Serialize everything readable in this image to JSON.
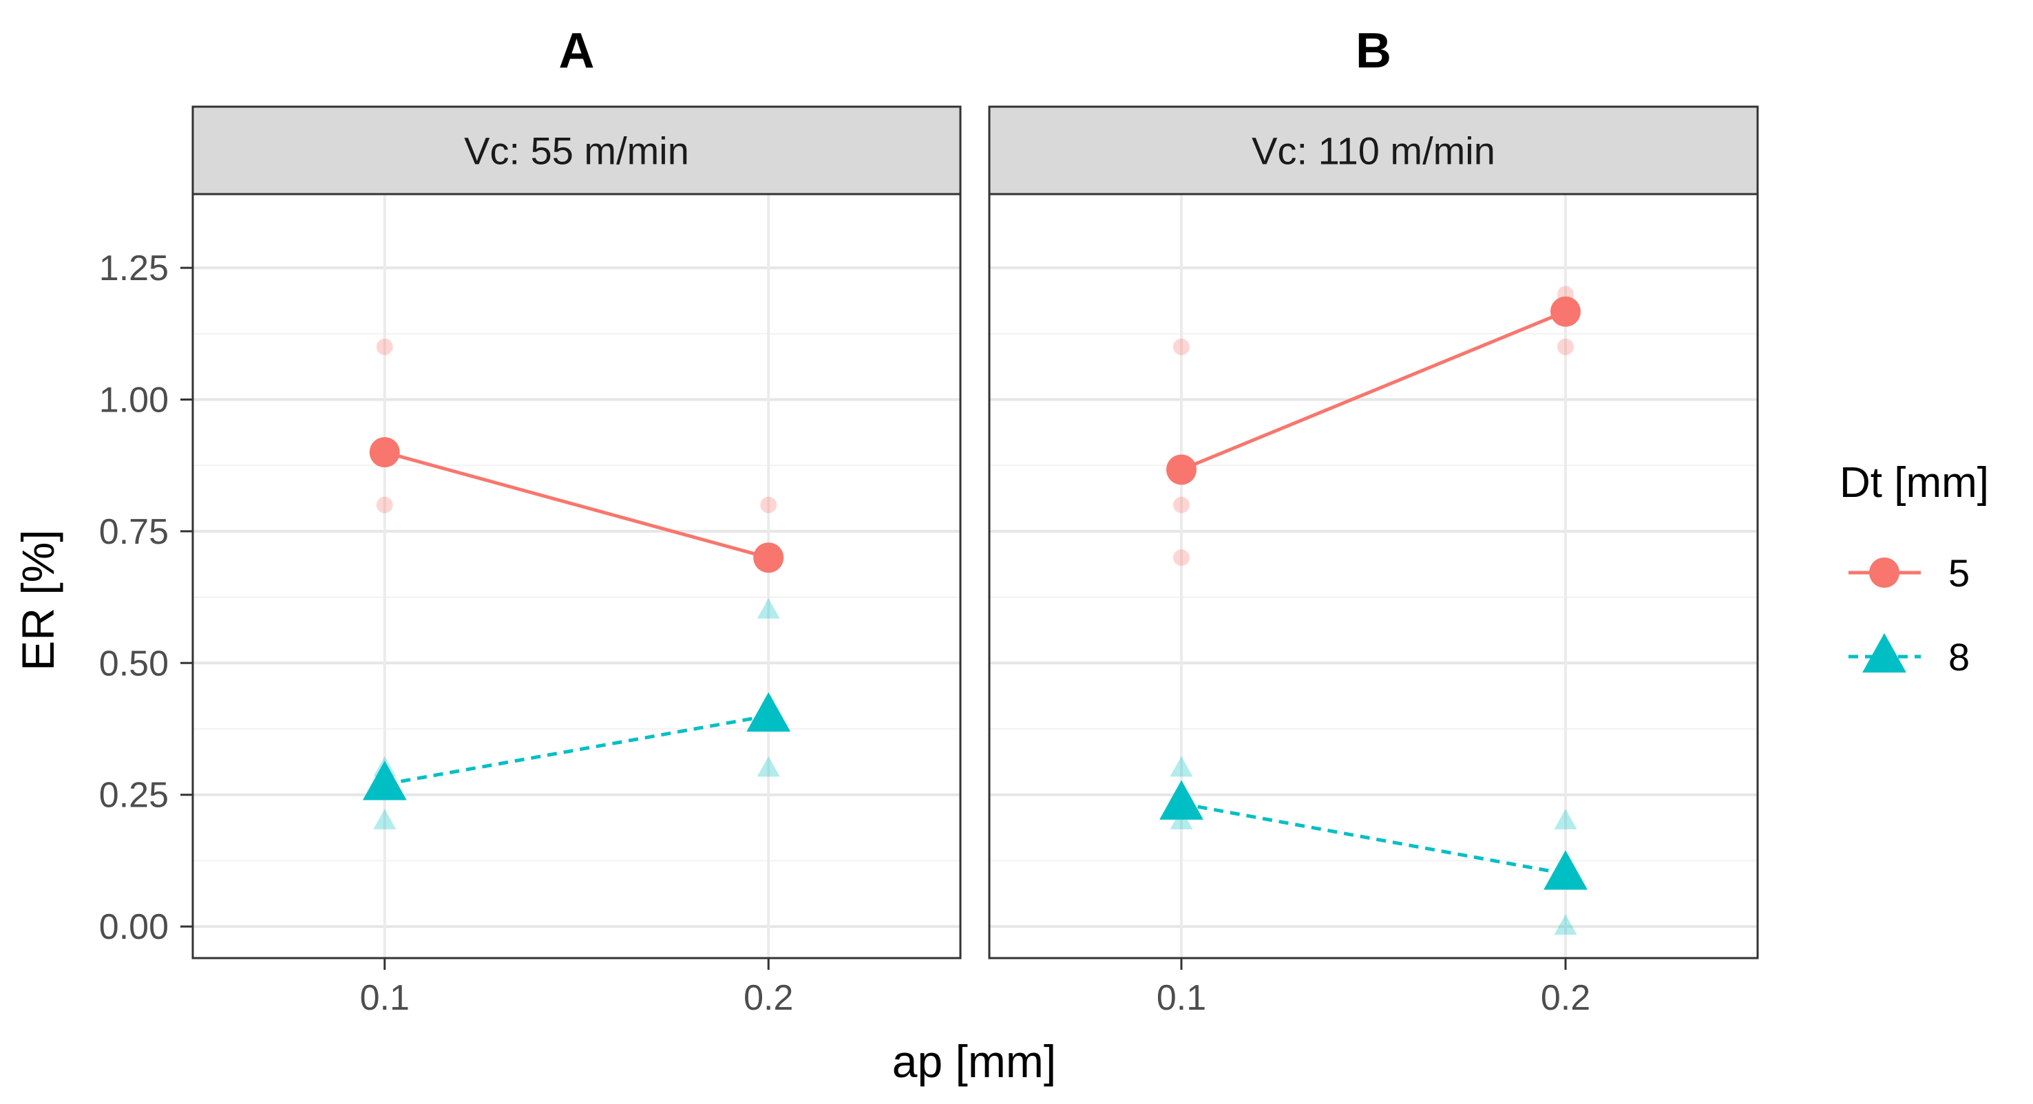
{
  "chart_data": {
    "type": "line",
    "xlabel": "ap [mm]",
    "ylabel": "ER [%]",
    "x_ticks": [
      "0.1",
      "0.2"
    ],
    "x_range": [
      0.05,
      0.25
    ],
    "y_ticks": [
      "0.00",
      "0.25",
      "0.50",
      "0.75",
      "1.00",
      "1.25"
    ],
    "y_tick_values": [
      0,
      0.25,
      0.5,
      0.75,
      1.0,
      1.25
    ],
    "ylim": [
      -0.06,
      1.39
    ],
    "grid": true,
    "legend": {
      "title": "Dt [mm]",
      "position": "right",
      "entries": [
        {
          "label": "5",
          "color": "#F8766D",
          "shape": "circle",
          "linetype": "solid"
        },
        {
          "label": "8",
          "color": "#00BFC4",
          "shape": "triangle",
          "linetype": "dashed"
        }
      ]
    },
    "panels": [
      {
        "tag": "A",
        "strip": "Vc: 55 m/min",
        "series": [
          {
            "name": "5",
            "means": [
              {
                "x": 0.1,
                "y": 0.9
              },
              {
                "x": 0.2,
                "y": 0.7
              }
            ],
            "observations": [
              {
                "x": 0.1,
                "y": 1.1
              },
              {
                "x": 0.1,
                "y": 0.8
              },
              {
                "x": 0.2,
                "y": 0.8
              }
            ]
          },
          {
            "name": "8",
            "means": [
              {
                "x": 0.1,
                "y": 0.27
              },
              {
                "x": 0.2,
                "y": 0.4
              }
            ],
            "observations": [
              {
                "x": 0.1,
                "y": 0.3
              },
              {
                "x": 0.1,
                "y": 0.2
              },
              {
                "x": 0.2,
                "y": 0.6
              },
              {
                "x": 0.2,
                "y": 0.3
              }
            ]
          }
        ]
      },
      {
        "tag": "B",
        "strip": "Vc: 110 m/min",
        "series": [
          {
            "name": "5",
            "means": [
              {
                "x": 0.1,
                "y": 0.867
              },
              {
                "x": 0.2,
                "y": 1.167
              }
            ],
            "observations": [
              {
                "x": 0.1,
                "y": 1.1
              },
              {
                "x": 0.1,
                "y": 0.8
              },
              {
                "x": 0.1,
                "y": 0.7
              },
              {
                "x": 0.2,
                "y": 1.2
              },
              {
                "x": 0.2,
                "y": 1.1
              }
            ]
          },
          {
            "name": "8",
            "means": [
              {
                "x": 0.1,
                "y": 0.233
              },
              {
                "x": 0.2,
                "y": 0.1
              }
            ],
            "observations": [
              {
                "x": 0.1,
                "y": 0.3
              },
              {
                "x": 0.1,
                "y": 0.2
              },
              {
                "x": 0.2,
                "y": 0.2
              },
              {
                "x": 0.2,
                "y": 0.0
              }
            ]
          }
        ]
      }
    ]
  }
}
